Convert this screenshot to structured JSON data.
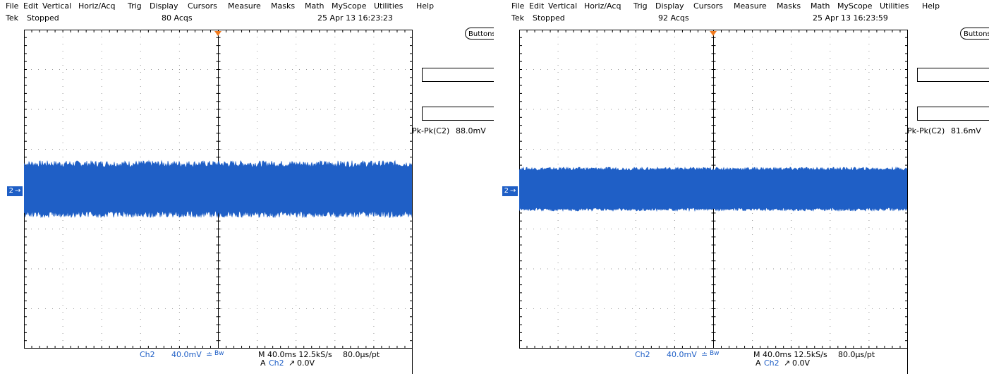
{
  "menu": [
    "File",
    "Edit",
    "Vertical",
    "Horiz/Acq",
    "Trig",
    "Display",
    "Cursors",
    "Measure",
    "Masks",
    "Math",
    "MyScope",
    "Utilities",
    "Help"
  ],
  "colors": {
    "waveform": "#1f5fc6",
    "trigger_marker": "#f07a1e",
    "grid_dots": "#9a9a9a"
  },
  "scopes": [
    {
      "brand": "Tek",
      "state": "Stopped",
      "acqs": "80 Acqs",
      "datetime": "25 Apr 13 16:23:23",
      "button_label": "Buttons",
      "measurement": {
        "label": "Pk-Pk(C2)",
        "value": "88.0mV"
      },
      "channel_marker": "2",
      "readout": {
        "channel": "Ch2",
        "scale": "40.0mV",
        "bw_icon": "bandwidth-limit-icon",
        "bw": "Bw",
        "timebase": "M 40.0ms 12.5kS/s",
        "pt": "80.0µs/pt",
        "trigger_prefix": "A",
        "trigger_source": "Ch2",
        "trigger_slope_icon": "rising-edge-icon",
        "trigger_level": "0.0V"
      },
      "waveform": {
        "center_div": 4,
        "amp_div": 1.0,
        "spike_div": 0.3
      }
    },
    {
      "brand": "Tek",
      "state": "Stopped",
      "acqs": "92 Acqs",
      "datetime": "25 Apr 13 16:23:59",
      "button_label": "Buttons",
      "measurement": {
        "label": "Pk-Pk(C2)",
        "value": "81.6mV"
      },
      "channel_marker": "2",
      "readout": {
        "channel": "Ch2",
        "scale": "40.0mV",
        "bw_icon": "bandwidth-limit-icon",
        "bw": "Bw",
        "timebase": "M 40.0ms 12.5kS/s",
        "pt": "80.0µs/pt",
        "trigger_prefix": "A",
        "trigger_source": "Ch2",
        "trigger_slope_icon": "rising-edge-icon",
        "trigger_level": "0.0V"
      },
      "waveform": {
        "center_div": 4,
        "amp_div": 0.85,
        "spike_div": 0.15
      }
    }
  ]
}
